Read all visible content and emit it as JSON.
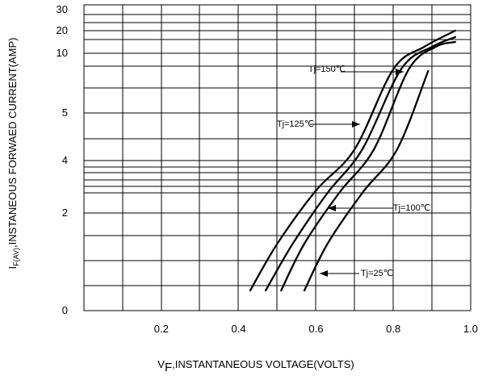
{
  "chart_data": {
    "type": "line",
    "title": "",
    "xlabel": {
      "main": "V",
      "sub": "F",
      "rest": ",INSTANTANEOUS VOLTAGE(VOLTS)"
    },
    "ylabel": {
      "main": "I",
      "sub": "F(AV)",
      "rest": ",INSTANEOUS FORWAED CURRENT(AMP)"
    },
    "xlim": [
      0,
      1.0
    ],
    "x_ticks": [
      {
        "value": 0.2,
        "label": "0.2"
      },
      {
        "value": 0.4,
        "label": "0.4"
      },
      {
        "value": 0.6,
        "label": "0.6"
      },
      {
        "value": 0.8,
        "label": "0.8"
      },
      {
        "value": 1.0,
        "label": "1.0"
      }
    ],
    "y_ticks": [
      {
        "label": "30",
        "level": 30
      },
      {
        "label": "20",
        "level": 20
      },
      {
        "label": "10",
        "level": 10
      },
      {
        "label": "5",
        "level": 5
      },
      {
        "label": "4",
        "level": 4
      },
      {
        "label": "2",
        "level": 2
      },
      {
        "label": "0",
        "level": 0
      }
    ],
    "series": [
      {
        "name": "Tj=150℃",
        "points": [
          [
            0.43,
            1.1
          ],
          [
            0.5,
            1.55
          ],
          [
            0.6,
            2.7
          ],
          [
            0.7,
            4.4
          ],
          [
            0.8,
            8.2
          ],
          [
            0.88,
            11.0
          ],
          [
            0.96,
            20.0
          ]
        ]
      },
      {
        "name": "Tj=125℃",
        "points": [
          [
            0.47,
            1.1
          ],
          [
            0.54,
            1.55
          ],
          [
            0.63,
            2.6
          ],
          [
            0.72,
            4.4
          ],
          [
            0.82,
            8.2
          ],
          [
            0.9,
            11.0
          ],
          [
            0.96,
            17.0
          ]
        ]
      },
      {
        "name": "Tj=100℃",
        "points": [
          [
            0.51,
            1.1
          ],
          [
            0.57,
            1.55
          ],
          [
            0.66,
            2.6
          ],
          [
            0.75,
            4.4
          ],
          [
            0.84,
            8.2
          ],
          [
            0.91,
            11.0
          ],
          [
            0.96,
            14.0
          ]
        ]
      },
      {
        "name": "Tj=25℃",
        "points": [
          [
            0.57,
            1.1
          ],
          [
            0.63,
            1.55
          ],
          [
            0.72,
            2.6
          ],
          [
            0.81,
            4.4
          ],
          [
            0.89,
            8.0
          ]
        ]
      }
    ],
    "annotations": [
      {
        "text": "Tj=150℃",
        "series": 0
      },
      {
        "text": "Tj=125℃",
        "series": 1
      },
      {
        "text": "Tj=100℃",
        "series": 2
      },
      {
        "text": "Tj=25℃",
        "series": 3
      }
    ],
    "grid": true,
    "legend": "none"
  }
}
